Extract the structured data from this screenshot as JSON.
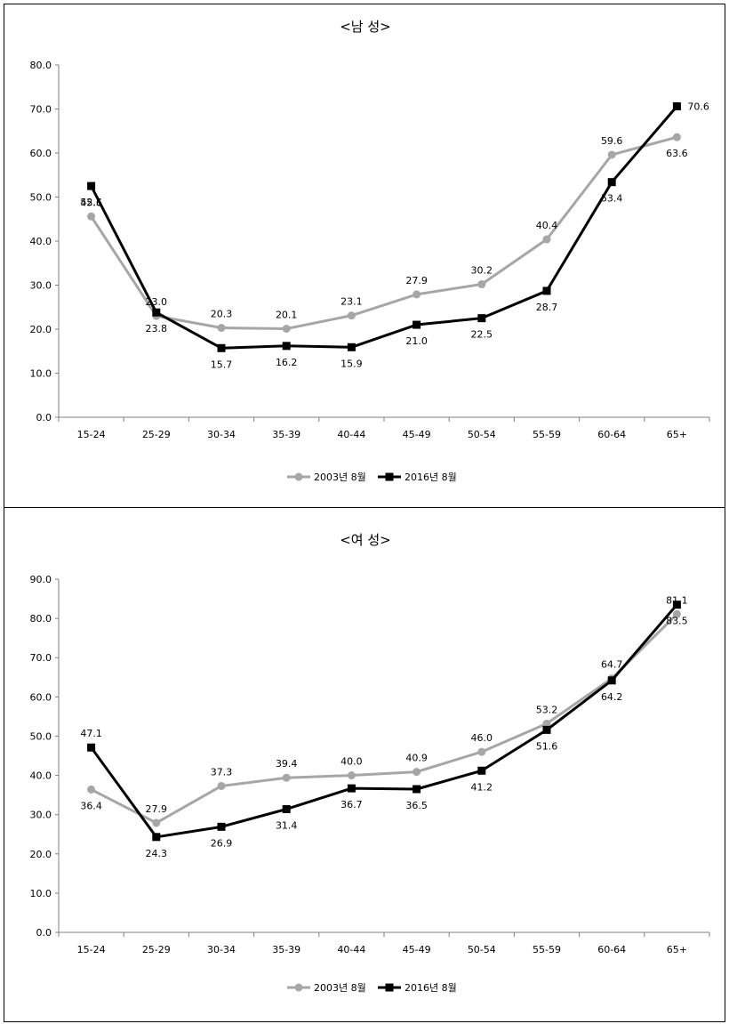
{
  "chart_data": [
    {
      "type": "line",
      "title": "<남 성>",
      "categories": [
        "15-24",
        "25-29",
        "30-34",
        "35-39",
        "40-44",
        "45-49",
        "50-54",
        "55-59",
        "60-64",
        "65+"
      ],
      "ylim": [
        0,
        80
      ],
      "yticks": [
        "0.0",
        "10.0",
        "20.0",
        "30.0",
        "40.0",
        "50.0",
        "60.0",
        "70.0",
        "80.0"
      ],
      "grid": false,
      "legend": "bottom",
      "series": [
        {
          "name": "2003년 8월",
          "color": "#a6a6a6",
          "marker": "circle",
          "values": [
            45.6,
            23.0,
            20.3,
            20.1,
            23.1,
            27.9,
            30.2,
            40.4,
            59.6,
            63.6
          ],
          "labels": [
            "45.6",
            "23.0",
            "20.3",
            "20.1",
            "23.1",
            "27.9",
            "30.2",
            "40.4",
            "59.6",
            "63.6"
          ]
        },
        {
          "name": "2016년 8월",
          "color": "#000000",
          "marker": "square",
          "values": [
            52.5,
            23.8,
            15.7,
            16.2,
            15.9,
            21.0,
            22.5,
            28.7,
            53.4,
            70.6
          ],
          "labels": [
            "52.5",
            "23.8",
            "15.7",
            "16.2",
            "15.9",
            "21.0",
            "22.5",
            "28.7",
            "53.4",
            "70.6"
          ]
        }
      ]
    },
    {
      "type": "line",
      "title": "<여 성>",
      "categories": [
        "15-24",
        "25-29",
        "30-34",
        "35-39",
        "40-44",
        "45-49",
        "50-54",
        "55-59",
        "60-64",
        "65+"
      ],
      "ylim": [
        0,
        90
      ],
      "yticks": [
        "0.0",
        "10.0",
        "20.0",
        "30.0",
        "40.0",
        "50.0",
        "60.0",
        "70.0",
        "80.0",
        "90.0"
      ],
      "grid": false,
      "legend": "bottom",
      "series": [
        {
          "name": "2003년 8월",
          "color": "#a6a6a6",
          "marker": "circle",
          "values": [
            36.4,
            27.9,
            37.3,
            39.4,
            40.0,
            40.9,
            46.0,
            53.2,
            64.7,
            81.1
          ],
          "labels": [
            "36.4",
            "27.9",
            "37.3",
            "39.4",
            "40.0",
            "40.9",
            "46.0",
            "53.2",
            "64.7",
            "81.1"
          ]
        },
        {
          "name": "2016년 8월",
          "color": "#000000",
          "marker": "square",
          "values": [
            47.1,
            24.3,
            26.9,
            31.4,
            36.7,
            36.5,
            41.2,
            51.6,
            64.2,
            83.5
          ],
          "labels": [
            "47.1",
            "24.3",
            "26.9",
            "31.4",
            "36.7",
            "36.5",
            "41.2",
            "51.6",
            "64.2",
            "83.5"
          ]
        }
      ]
    }
  ]
}
